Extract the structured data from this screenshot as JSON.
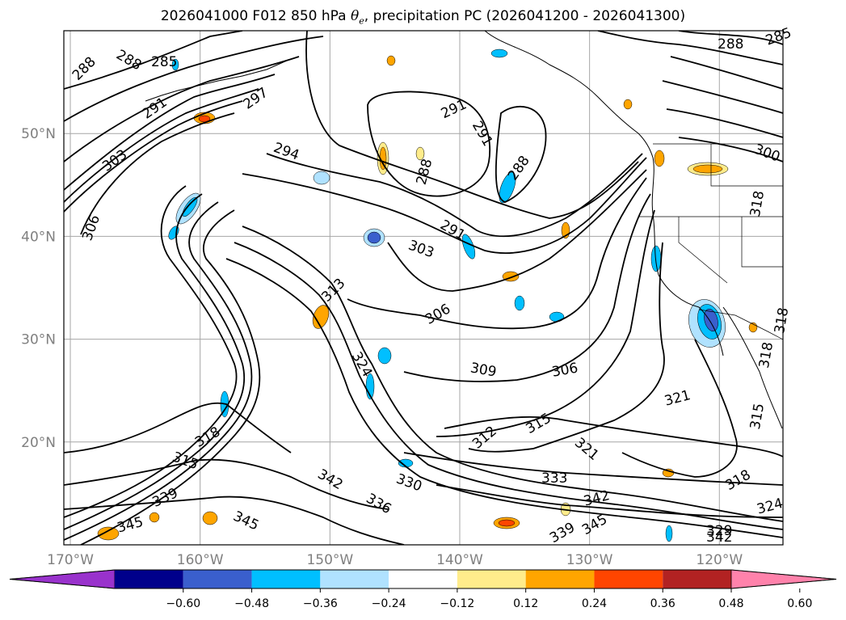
{
  "title": {
    "prefix": "2026041000 F012 850 hPa ",
    "theta": "θ",
    "theta_sub": "e",
    "suffix": ", precipitation PC (2026041200 - 2026041300)"
  },
  "axes": {
    "lon_ticks": [
      "170°W",
      "160°W",
      "150°W",
      "140°W",
      "130°W",
      "120°W"
    ],
    "lat_ticks": [
      "50°N",
      "40°N",
      "30°N",
      "20°N"
    ],
    "lon_values": [
      -170,
      -160,
      -150,
      -140,
      -130,
      -120
    ],
    "lat_values": [
      50,
      40,
      30,
      20
    ],
    "lon_range": [
      -170.5,
      -115.1
    ],
    "lat_range": [
      10,
      60
    ],
    "grid": true
  },
  "colorbar": {
    "ticks": [
      "−0.60",
      "−0.48",
      "−0.36",
      "−0.24",
      "−0.12",
      "0.12",
      "0.24",
      "0.36",
      "0.48",
      "0.60"
    ],
    "tick_values": [
      -0.6,
      -0.48,
      -0.36,
      -0.24,
      -0.12,
      0.12,
      0.24,
      0.36,
      0.48,
      0.6
    ],
    "colors": [
      "#9932cc",
      "#00008b",
      "#3a5fcd",
      "#00bfff",
      "#b0e2ff",
      "#ffffff",
      "#ffec8b",
      "#ffa500",
      "#ff4500",
      "#b22222",
      "#ff82ab"
    ],
    "extend": "both"
  },
  "contour_labels": [
    {
      "text": "288"
    },
    {
      "text": "288"
    },
    {
      "text": "285"
    },
    {
      "text": "288"
    },
    {
      "text": "285"
    },
    {
      "text": "297"
    },
    {
      "text": "291"
    },
    {
      "text": "303"
    },
    {
      "text": "306"
    },
    {
      "text": "294"
    },
    {
      "text": "291"
    },
    {
      "text": "291"
    },
    {
      "text": "288"
    },
    {
      "text": "288"
    },
    {
      "text": "300"
    },
    {
      "text": "291"
    },
    {
      "text": "303"
    },
    {
      "text": "318"
    },
    {
      "text": "313"
    },
    {
      "text": "306"
    },
    {
      "text": "318"
    },
    {
      "text": "324"
    },
    {
      "text": "309"
    },
    {
      "text": "306"
    },
    {
      "text": "318"
    },
    {
      "text": "315"
    },
    {
      "text": "318"
    },
    {
      "text": "312"
    },
    {
      "text": "315"
    },
    {
      "text": "321"
    },
    {
      "text": "315"
    },
    {
      "text": "333"
    },
    {
      "text": "321"
    },
    {
      "text": "342"
    },
    {
      "text": "330"
    },
    {
      "text": "336"
    },
    {
      "text": "339"
    },
    {
      "text": "345"
    },
    {
      "text": "345"
    },
    {
      "text": "342"
    },
    {
      "text": "345"
    },
    {
      "text": "339"
    },
    {
      "text": "324"
    },
    {
      "text": "329"
    },
    {
      "text": "342"
    },
    {
      "text": "318"
    }
  ]
}
